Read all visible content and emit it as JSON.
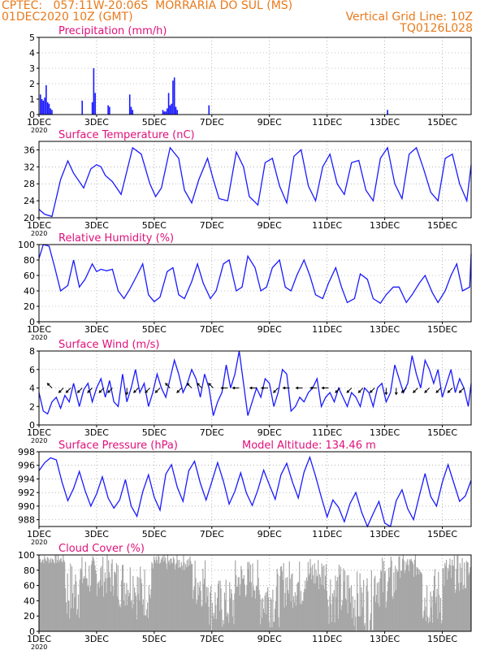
{
  "header": {
    "line1_left": "CPTEC:   057:11W-20:06S  MORRARIA DO SUL (MS)",
    "line2_left": "01DEC2020 10Z (GMT)",
    "line2_right": "Vertical Grid Line: 10Z",
    "line3_right": "TQ0126L028",
    "model_altitude": "Model Altitude: 134.46 m",
    "color": "#e87a1c"
  },
  "colors": {
    "title": "#e0107a",
    "series": "#1a1aff",
    "cloud": "#a6a6a6",
    "arrow": "#000000"
  },
  "x_axis": {
    "range_days": [
      0,
      15.0
    ],
    "ticks": [
      {
        "day": 0,
        "label": "1DEC"
      },
      {
        "day": 2,
        "label": "3DEC"
      },
      {
        "day": 4,
        "label": "5DEC"
      },
      {
        "day": 6,
        "label": "7DEC"
      },
      {
        "day": 8,
        "label": "9DEC"
      },
      {
        "day": 10,
        "label": "11DEC"
      },
      {
        "day": 12,
        "label": "13DEC"
      },
      {
        "day": 14,
        "label": "15DEC"
      }
    ],
    "year_label": "2020"
  },
  "chart_data": [
    {
      "type": "bar",
      "title": "Precipitation (mm/h)",
      "ylim": [
        0,
        5
      ],
      "yticks": [
        0,
        1,
        2,
        3,
        4,
        5
      ],
      "x": [
        0.05,
        0.1,
        0.15,
        0.2,
        0.25,
        0.3,
        0.35,
        0.4,
        0.45,
        1.5,
        1.85,
        1.9,
        1.95,
        2.4,
        2.45,
        3.15,
        3.2,
        3.25,
        4.3,
        4.35,
        4.4,
        4.45,
        4.5,
        4.55,
        4.6,
        4.65,
        4.7,
        4.75,
        4.8,
        5.9,
        12.1
      ],
      "values": [
        1.3,
        1.0,
        0.9,
        1.1,
        1.9,
        0.8,
        0.7,
        0.4,
        0.3,
        0.9,
        0.8,
        3.0,
        1.4,
        0.6,
        0.5,
        1.3,
        0.5,
        0.3,
        0.3,
        0.2,
        0.2,
        0.4,
        1.4,
        0.6,
        0.7,
        2.2,
        2.4,
        0.5,
        0.3,
        0.6,
        0.3
      ]
    },
    {
      "type": "line",
      "title": "Surface Temperature (nC)",
      "ylim": [
        20,
        38
      ],
      "yticks": [
        20,
        24,
        28,
        32,
        36
      ],
      "x": [
        0,
        0.2,
        0.45,
        0.75,
        1.0,
        1.2,
        1.55,
        1.8,
        2.0,
        2.15,
        2.3,
        2.55,
        2.85,
        3.05,
        3.25,
        3.55,
        3.85,
        4.05,
        4.25,
        4.55,
        4.85,
        5.05,
        5.3,
        5.55,
        5.85,
        6.05,
        6.25,
        6.55,
        6.85,
        7.1,
        7.3,
        7.6,
        7.85,
        8.1,
        8.35,
        8.6,
        8.85,
        9.1,
        9.35,
        9.6,
        9.85,
        10.1,
        10.35,
        10.6,
        10.85,
        11.1,
        11.35,
        11.6,
        11.85,
        12.1,
        12.35,
        12.6,
        12.85,
        13.1,
        13.35,
        13.6,
        13.85,
        14.1,
        14.35,
        14.6,
        14.85,
        15.0
      ],
      "values": [
        22.0,
        20.8,
        20.3,
        29.0,
        33.4,
        30.5,
        27.0,
        31.5,
        32.5,
        32.0,
        30.0,
        28.5,
        25.5,
        31.0,
        36.5,
        35.0,
        28.0,
        25.0,
        27.0,
        36.5,
        34.0,
        26.5,
        23.5,
        29.0,
        34.0,
        29.0,
        24.5,
        24.0,
        35.5,
        32.0,
        25.0,
        23.0,
        33.0,
        34.0,
        27.5,
        23.5,
        34.5,
        36.0,
        27.5,
        24.0,
        32.0,
        35.0,
        28.0,
        25.5,
        33.0,
        33.5,
        26.5,
        24.0,
        34.0,
        36.5,
        28.0,
        24.5,
        35.0,
        36.5,
        31.5,
        26.0,
        24.0,
        34.0,
        35.0,
        28.0,
        24.0,
        32.5
      ]
    },
    {
      "type": "line",
      "title": "Relative Humidity (%)",
      "ylim": [
        0,
        100
      ],
      "yticks": [
        0,
        20,
        40,
        60,
        80,
        100
      ],
      "x": [
        0,
        0.15,
        0.35,
        0.55,
        0.75,
        1.0,
        1.2,
        1.4,
        1.6,
        1.85,
        2.0,
        2.15,
        2.35,
        2.55,
        2.75,
        2.95,
        3.15,
        3.4,
        3.6,
        3.8,
        4.0,
        4.2,
        4.45,
        4.65,
        4.85,
        5.05,
        5.3,
        5.5,
        5.7,
        5.95,
        6.15,
        6.4,
        6.6,
        6.85,
        7.05,
        7.25,
        7.5,
        7.7,
        7.9,
        8.1,
        8.35,
        8.55,
        8.75,
        8.95,
        9.2,
        9.4,
        9.6,
        9.85,
        10.05,
        10.3,
        10.5,
        10.7,
        10.95,
        11.15,
        11.4,
        11.6,
        11.85,
        12.05,
        12.3,
        12.5,
        12.75,
        12.95,
        13.2,
        13.4,
        13.65,
        13.85,
        14.1,
        14.3,
        14.5,
        14.7,
        14.95,
        15.0
      ],
      "values": [
        82,
        100,
        98,
        70,
        40,
        47,
        80,
        45,
        55,
        75,
        65,
        68,
        66,
        68,
        40,
        30,
        42,
        60,
        75,
        35,
        26,
        32,
        65,
        70,
        35,
        30,
        52,
        75,
        50,
        30,
        40,
        75,
        80,
        40,
        45,
        85,
        70,
        40,
        45,
        70,
        80,
        45,
        40,
        60,
        80,
        60,
        35,
        30,
        50,
        70,
        45,
        25,
        30,
        62,
        55,
        30,
        24,
        35,
        45,
        45,
        25,
        35,
        50,
        60,
        38,
        25,
        40,
        60,
        75,
        40,
        45,
        88
      ]
    },
    {
      "type": "line",
      "title": "Surface Wind (m/s)",
      "ylim": [
        0,
        8
      ],
      "yticks": [
        0,
        2,
        4,
        6,
        8
      ],
      "x": [
        0,
        0.15,
        0.3,
        0.45,
        0.6,
        0.75,
        0.9,
        1.05,
        1.2,
        1.4,
        1.55,
        1.7,
        1.85,
        2.0,
        2.15,
        2.3,
        2.45,
        2.6,
        2.75,
        2.9,
        3.05,
        3.2,
        3.35,
        3.5,
        3.65,
        3.8,
        3.95,
        4.1,
        4.25,
        4.4,
        4.55,
        4.7,
        4.85,
        5.0,
        5.15,
        5.3,
        5.45,
        5.6,
        5.75,
        5.9,
        6.05,
        6.2,
        6.35,
        6.5,
        6.65,
        6.8,
        6.95,
        7.1,
        7.25,
        7.4,
        7.55,
        7.7,
        7.85,
        8.0,
        8.15,
        8.3,
        8.45,
        8.6,
        8.75,
        8.9,
        9.05,
        9.2,
        9.35,
        9.5,
        9.65,
        9.8,
        9.95,
        10.1,
        10.25,
        10.4,
        10.55,
        10.7,
        10.85,
        11.0,
        11.15,
        11.3,
        11.45,
        11.6,
        11.75,
        11.9,
        12.05,
        12.2,
        12.35,
        12.5,
        12.65,
        12.8,
        12.95,
        13.1,
        13.25,
        13.4,
        13.55,
        13.7,
        13.85,
        14.0,
        14.15,
        14.3,
        14.45,
        14.6,
        14.75,
        14.9,
        15.0
      ],
      "values": [
        3.5,
        1.5,
        1.2,
        2.5,
        3.0,
        1.8,
        3.2,
        2.5,
        4.5,
        2.0,
        3.8,
        4.5,
        2.5,
        4.0,
        5.0,
        3.0,
        4.8,
        2.5,
        2.0,
        5.5,
        2.5,
        4.0,
        6.0,
        3.5,
        4.5,
        2.0,
        3.5,
        5.5,
        4.0,
        3.0,
        5.0,
        7.0,
        5.5,
        3.5,
        4.5,
        6.0,
        5.0,
        3.0,
        5.5,
        4.0,
        1.0,
        2.5,
        3.5,
        6.5,
        4.0,
        5.5,
        8.0,
        4.5,
        1.0,
        2.5,
        4.0,
        3.0,
        5.0,
        4.5,
        2.0,
        3.5,
        6.0,
        5.5,
        1.5,
        2.0,
        3.0,
        2.5,
        3.5,
        4.0,
        5.0,
        2.0,
        3.0,
        3.5,
        2.5,
        4.0,
        3.0,
        2.0,
        3.5,
        3.0,
        2.0,
        4.0,
        3.5,
        2.0,
        4.0,
        4.5,
        2.5,
        3.5,
        6.5,
        5.0,
        3.5,
        4.5,
        7.5,
        5.5,
        4.0,
        7.0,
        6.0,
        4.5,
        6.0,
        3.0,
        4.5,
        6.0,
        3.5,
        5.0,
        4.0,
        2.0,
        4.5
      ],
      "barbs": [
        {
          "day": 0.45,
          "dir": "NW"
        },
        {
          "day": 0.85,
          "dir": "SW"
        },
        {
          "day": 1.1,
          "dir": "SW"
        },
        {
          "day": 1.5,
          "dir": "SW"
        },
        {
          "day": 1.85,
          "dir": "SW"
        },
        {
          "day": 2.25,
          "dir": "SW"
        },
        {
          "day": 2.55,
          "dir": "SW"
        },
        {
          "day": 3.05,
          "dir": "S"
        },
        {
          "day": 3.45,
          "dir": "SW"
        },
        {
          "day": 3.85,
          "dir": "SW"
        },
        {
          "day": 4.2,
          "dir": "SW"
        },
        {
          "day": 4.55,
          "dir": "NW"
        },
        {
          "day": 4.95,
          "dir": "SW"
        },
        {
          "day": 5.3,
          "dir": "NW"
        },
        {
          "day": 5.65,
          "dir": "NW"
        },
        {
          "day": 6.05,
          "dir": "NW"
        },
        {
          "day": 6.55,
          "dir": "W"
        },
        {
          "day": 6.95,
          "dir": "W"
        },
        {
          "day": 7.55,
          "dir": "W"
        },
        {
          "day": 7.95,
          "dir": "W"
        },
        {
          "day": 8.3,
          "dir": "SW"
        },
        {
          "day": 8.7,
          "dir": "W"
        },
        {
          "day": 9.15,
          "dir": "W"
        },
        {
          "day": 9.65,
          "dir": "W"
        },
        {
          "day": 10.05,
          "dir": "W"
        },
        {
          "day": 10.45,
          "dir": "SW"
        },
        {
          "day": 10.85,
          "dir": "SW"
        },
        {
          "day": 11.25,
          "dir": "SW"
        },
        {
          "day": 11.65,
          "dir": "SW"
        },
        {
          "day": 12.05,
          "dir": "S"
        },
        {
          "day": 12.4,
          "dir": "S"
        },
        {
          "day": 12.75,
          "dir": "SW"
        },
        {
          "day": 13.15,
          "dir": "SW"
        },
        {
          "day": 13.55,
          "dir": "SW"
        },
        {
          "day": 13.95,
          "dir": "SW"
        },
        {
          "day": 14.35,
          "dir": "SW"
        },
        {
          "day": 14.75,
          "dir": "SW"
        }
      ]
    },
    {
      "type": "line",
      "title": "Surface Pressure (hPa)",
      "ylim": [
        987,
        998
      ],
      "yticks": [
        988,
        990,
        992,
        994,
        996,
        998
      ],
      "x": [
        0,
        0.2,
        0.4,
        0.6,
        0.8,
        1.0,
        1.2,
        1.4,
        1.6,
        1.8,
        2.0,
        2.2,
        2.4,
        2.6,
        2.8,
        3.0,
        3.2,
        3.4,
        3.6,
        3.8,
        4.0,
        4.2,
        4.4,
        4.6,
        4.8,
        5.0,
        5.2,
        5.4,
        5.6,
        5.8,
        6.0,
        6.2,
        6.4,
        6.6,
        6.8,
        7.0,
        7.2,
        7.4,
        7.6,
        7.8,
        8.0,
        8.2,
        8.4,
        8.6,
        8.8,
        9.0,
        9.2,
        9.4,
        9.6,
        9.8,
        10.0,
        10.2,
        10.4,
        10.6,
        10.8,
        11.0,
        11.2,
        11.4,
        11.6,
        11.8,
        12.0,
        12.2,
        12.4,
        12.6,
        12.8,
        13.0,
        13.2,
        13.4,
        13.6,
        13.8,
        14.0,
        14.2,
        14.4,
        14.6,
        14.8,
        15.0
      ],
      "values": [
        995.2,
        996.4,
        997.1,
        996.8,
        993.5,
        990.8,
        992.6,
        995.1,
        992.3,
        990.0,
        991.8,
        994.3,
        991.2,
        989.7,
        990.9,
        993.9,
        990.0,
        988.5,
        992.1,
        994.6,
        991.3,
        989.4,
        994.7,
        996.1,
        992.8,
        990.7,
        995.2,
        996.6,
        993.4,
        990.9,
        993.6,
        996.4,
        993.7,
        990.3,
        992.2,
        994.9,
        991.9,
        990.1,
        992.4,
        995.3,
        993.1,
        991.0,
        994.6,
        996.3,
        993.5,
        991.2,
        995.0,
        997.2,
        994.4,
        991.3,
        988.4,
        990.9,
        989.8,
        987.7,
        990.4,
        992.0,
        989.1,
        986.8,
        988.9,
        990.7,
        987.5,
        986.9,
        990.8,
        992.4,
        989.6,
        988.0,
        991.5,
        994.8,
        991.4,
        990.0,
        993.5,
        996.1,
        993.4,
        990.7,
        991.5,
        993.8
      ]
    },
    {
      "type": "bar",
      "title": "Cloud Cover (%)",
      "ylim": [
        0,
        100
      ],
      "yticks": [
        0,
        20,
        40,
        60,
        80,
        100
      ],
      "segments": [
        {
          "from": 0,
          "to": 0.9,
          "min": 88,
          "max": 100
        },
        {
          "from": 0.9,
          "to": 1.4,
          "min": 10,
          "max": 95
        },
        {
          "from": 1.4,
          "to": 2.6,
          "min": 45,
          "max": 100
        },
        {
          "from": 2.6,
          "to": 3.3,
          "min": 30,
          "max": 98
        },
        {
          "from": 3.3,
          "to": 3.9,
          "min": 15,
          "max": 90
        },
        {
          "from": 3.9,
          "to": 5.3,
          "min": 80,
          "max": 100
        },
        {
          "from": 5.3,
          "to": 5.9,
          "min": 30,
          "max": 100
        },
        {
          "from": 5.9,
          "to": 6.8,
          "min": 0,
          "max": 70
        },
        {
          "from": 6.8,
          "to": 7.6,
          "min": 40,
          "max": 95
        },
        {
          "from": 7.6,
          "to": 8.4,
          "min": 5,
          "max": 85
        },
        {
          "from": 8.4,
          "to": 9.2,
          "min": 30,
          "max": 95
        },
        {
          "from": 9.2,
          "to": 10.0,
          "min": 50,
          "max": 100
        },
        {
          "from": 10.0,
          "to": 10.9,
          "min": 10,
          "max": 90
        },
        {
          "from": 10.9,
          "to": 11.6,
          "min": 0,
          "max": 80
        },
        {
          "from": 11.6,
          "to": 12.4,
          "min": 30,
          "max": 100
        },
        {
          "from": 12.4,
          "to": 13.3,
          "min": 70,
          "max": 100
        },
        {
          "from": 13.3,
          "to": 14.0,
          "min": 5,
          "max": 85
        },
        {
          "from": 14.0,
          "to": 15.0,
          "min": 50,
          "max": 100
        }
      ]
    }
  ]
}
